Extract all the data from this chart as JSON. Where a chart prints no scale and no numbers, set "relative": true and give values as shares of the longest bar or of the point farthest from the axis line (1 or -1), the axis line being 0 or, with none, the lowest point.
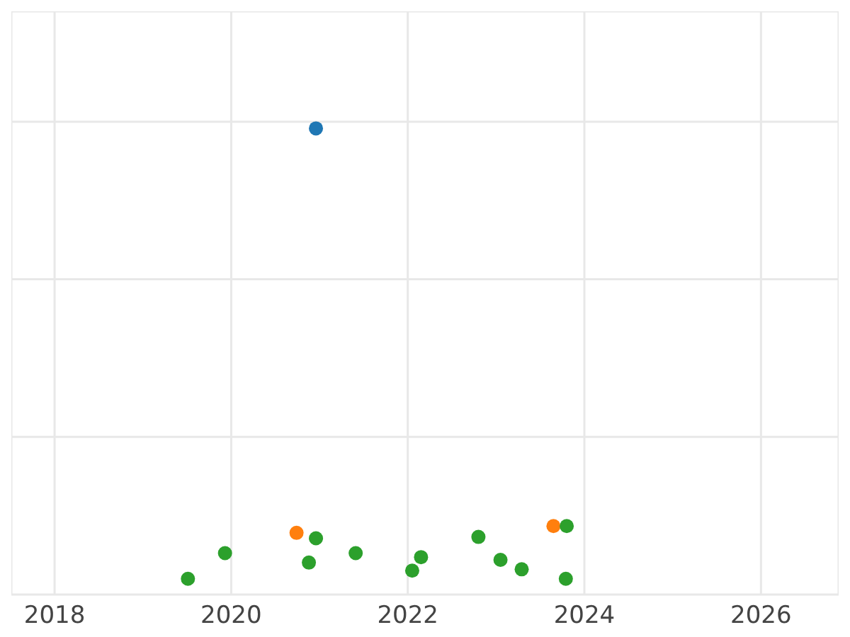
{
  "chart_data": {
    "type": "scatter",
    "relative": true,
    "xlim": [
      2017.51,
      2026.88
    ],
    "xticks": [
      2018,
      2020,
      2022,
      2024,
      2026
    ],
    "grid": true,
    "marker": "circle",
    "legend": false,
    "series": [
      {
        "color": "#1f77b4",
        "x": [
          2020.96
        ],
        "values": [
          1
        ]
      },
      {
        "color": "#ff7f0e",
        "x": [
          2020.74,
          2023.65
        ],
        "values": [
          0.102,
          0.117
        ]
      },
      {
        "color": "#2ca02c",
        "x": [
          2019.51,
          2019.93,
          2020.88,
          2020.96,
          2021.41,
          2022.05,
          2022.15,
          2022.8,
          2023.05,
          2023.29,
          2023.8,
          2023.79
        ],
        "values": [
          0,
          0.057,
          0.036,
          0.09,
          0.057,
          0.018,
          0.048,
          0.093,
          0.042,
          0.021,
          0.117,
          0
        ]
      }
    ]
  }
}
